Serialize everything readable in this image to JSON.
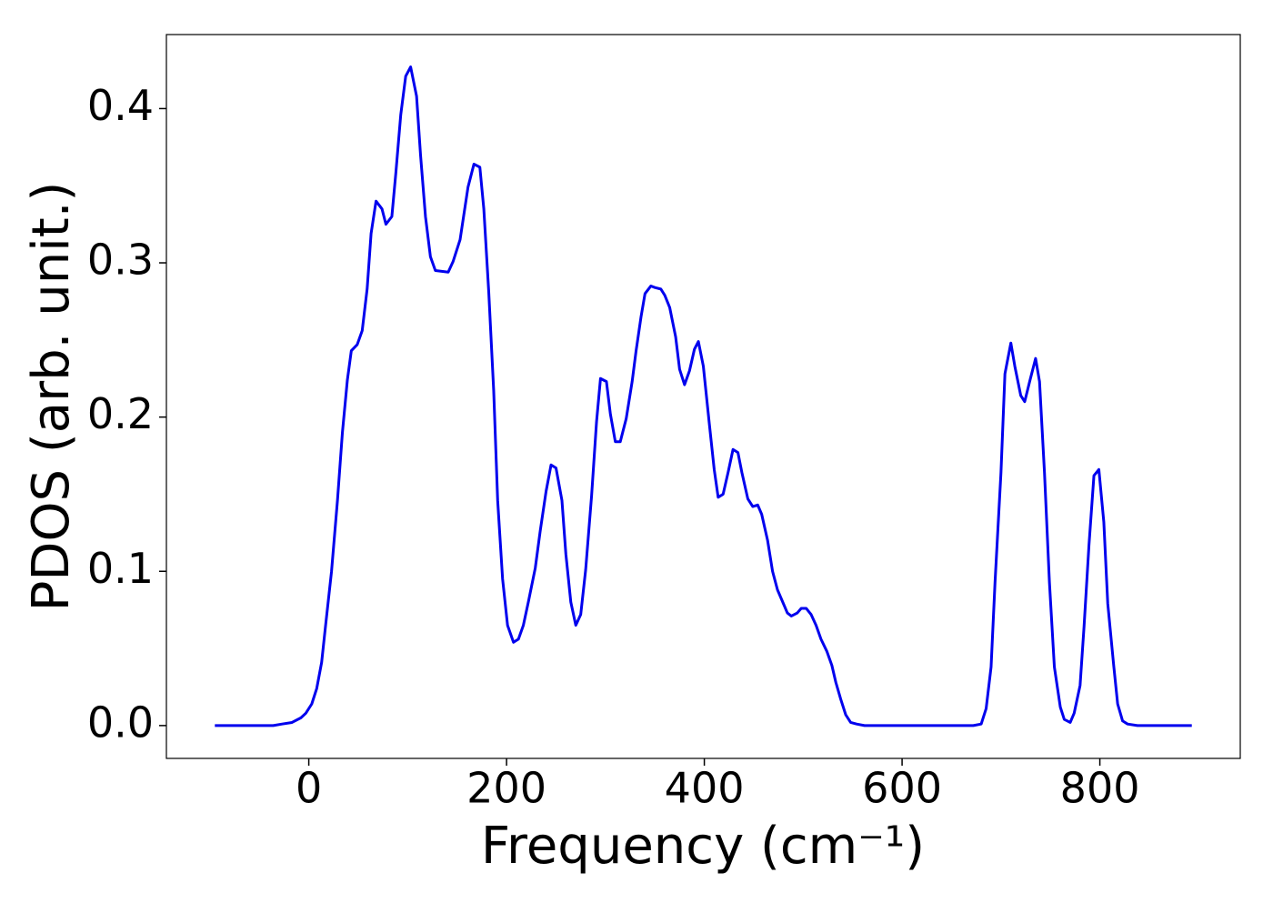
{
  "chart_data": {
    "type": "line",
    "xlabel": "Frequency (cm⁻¹)",
    "ylabel": "PDOS (arb. unit.)",
    "xlim": [
      -144,
      942
    ],
    "ylim": [
      -0.0213,
      0.448
    ],
    "xticks": [
      0,
      200,
      400,
      600,
      800
    ],
    "yticks": [
      {
        "value": 0,
        "label": "0.0"
      },
      0.1,
      0.2,
      0.3,
      0.4
    ],
    "series": [
      {
        "color": "#0000ee",
        "x": [
          -95,
          -36,
          -27,
          -17,
          -8,
          -3,
          3,
          8,
          13,
          17,
          23,
          29,
          34,
          39,
          43,
          49,
          54,
          59,
          63,
          68,
          74,
          78,
          84,
          88,
          93,
          98,
          103,
          109,
          113,
          118,
          123,
          128,
          141,
          146,
          153,
          161,
          167,
          173,
          177,
          182,
          187,
          191,
          196,
          201,
          207,
          212,
          217,
          222,
          229,
          234,
          240,
          245,
          250,
          256,
          260,
          265,
          270,
          275,
          280,
          286,
          291,
          295,
          301,
          305,
          310,
          315,
          321,
          327,
          331,
          336,
          340,
          346,
          350,
          356,
          360,
          365,
          371,
          375,
          380,
          385,
          390,
          394,
          399,
          405,
          410,
          414,
          419,
          424,
          429,
          434,
          438,
          444,
          449,
          454,
          458,
          464,
          469,
          474,
          480,
          484,
          488,
          494,
          498,
          503,
          508,
          513,
          518,
          524,
          529,
          533,
          538,
          543,
          548,
          554,
          562,
          672,
          680,
          685,
          690,
          694,
          700,
          704,
          710,
          714,
          720,
          724,
          729,
          735,
          739,
          744,
          749,
          754,
          760,
          764,
          770,
          774,
          780,
          784,
          789,
          794,
          799,
          804,
          808,
          814,
          818,
          823,
          828,
          838,
          893
        ],
        "values": [
          0,
          0,
          0.001,
          0.002,
          0.005,
          0.008,
          0.014,
          0.024,
          0.041,
          0.065,
          0.1,
          0.146,
          0.19,
          0.224,
          0.243,
          0.247,
          0.256,
          0.283,
          0.319,
          0.34,
          0.335,
          0.325,
          0.33,
          0.358,
          0.396,
          0.421,
          0.427,
          0.408,
          0.37,
          0.33,
          0.304,
          0.295,
          0.294,
          0.301,
          0.315,
          0.349,
          0.364,
          0.362,
          0.335,
          0.281,
          0.217,
          0.146,
          0.095,
          0.065,
          0.054,
          0.056,
          0.065,
          0.08,
          0.102,
          0.126,
          0.152,
          0.169,
          0.167,
          0.146,
          0.111,
          0.08,
          0.065,
          0.072,
          0.101,
          0.149,
          0.197,
          0.225,
          0.223,
          0.202,
          0.184,
          0.184,
          0.199,
          0.223,
          0.243,
          0.265,
          0.28,
          0.285,
          0.284,
          0.283,
          0.279,
          0.271,
          0.252,
          0.231,
          0.221,
          0.23,
          0.244,
          0.249,
          0.233,
          0.196,
          0.166,
          0.148,
          0.15,
          0.164,
          0.179,
          0.177,
          0.164,
          0.147,
          0.142,
          0.143,
          0.137,
          0.12,
          0.1,
          0.088,
          0.079,
          0.073,
          0.071,
          0.073,
          0.076,
          0.076,
          0.072,
          0.065,
          0.056,
          0.048,
          0.039,
          0.028,
          0.017,
          0.007,
          0.002,
          0.001,
          0,
          0,
          0.001,
          0.011,
          0.038,
          0.093,
          0.164,
          0.228,
          0.248,
          0.233,
          0.214,
          0.21,
          0.223,
          0.238,
          0.223,
          0.164,
          0.093,
          0.038,
          0.012,
          0.004,
          0.002,
          0.008,
          0.026,
          0.064,
          0.117,
          0.162,
          0.166,
          0.132,
          0.079,
          0.039,
          0.014,
          0.003,
          0.001,
          0,
          0
        ]
      }
    ]
  }
}
